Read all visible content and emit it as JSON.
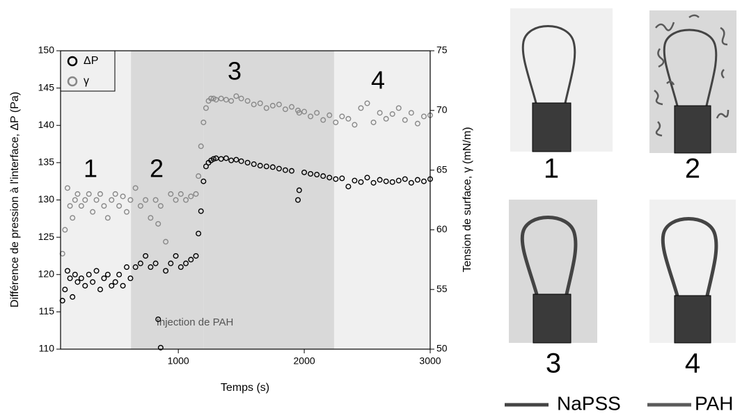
{
  "chart_data": {
    "type": "scatter",
    "xlabel": "Temps (s)",
    "ylabel": "Différence de pression à l'interface, ΔP (Pa)",
    "y2label": "Tension de surface, γ (mN/m)",
    "annotation": "Injection de PAH",
    "xlim": [
      65,
      3000
    ],
    "xticks": [
      1000,
      2000,
      3000
    ],
    "ylim": [
      110,
      150
    ],
    "yticks": [
      110,
      115,
      120,
      125,
      130,
      135,
      140,
      145,
      150
    ],
    "y2lim": [
      50,
      75
    ],
    "y2ticks": [
      50,
      55,
      60,
      65,
      70,
      75
    ],
    "legend": "upper left",
    "regions": [
      {
        "start": 65,
        "end": 624,
        "label": "1",
        "color": "#f0f0f0"
      },
      {
        "start": 624,
        "end": 1200,
        "label": "2",
        "color": "#d9d9d9"
      },
      {
        "start": 1200,
        "end": 2237,
        "label": "3",
        "color": "#d9d9d9"
      },
      {
        "start": 2237,
        "end": 3000,
        "label": "4",
        "color": "#f0f0f0"
      }
    ],
    "x": [
      80,
      100,
      120,
      140,
      160,
      180,
      200,
      230,
      260,
      290,
      320,
      350,
      380,
      410,
      440,
      470,
      500,
      530,
      560,
      590,
      620,
      660,
      700,
      740,
      780,
      820,
      840,
      860,
      900,
      940,
      980,
      1020,
      1060,
      1100,
      1140,
      1160,
      1180,
      1200,
      1220,
      1240,
      1260,
      1280,
      1300,
      1340,
      1380,
      1420,
      1460,
      1500,
      1550,
      1600,
      1650,
      1700,
      1750,
      1800,
      1850,
      1900,
      1950,
      1960,
      2000,
      2050,
      2100,
      2150,
      2200,
      2250,
      2300,
      2350,
      2400,
      2450,
      2500,
      2550,
      2600,
      2650,
      2700,
      2750,
      2800,
      2850,
      2900,
      2950,
      3000
    ],
    "series": [
      {
        "name": "ΔP",
        "color": "#000000",
        "axis": "y",
        "values": [
          116.5,
          118,
          120.5,
          119.5,
          117,
          120,
          119,
          119.5,
          118.5,
          120,
          119,
          120.5,
          118,
          119.5,
          120,
          118.5,
          119,
          120,
          118.5,
          121,
          119.5,
          121,
          121.5,
          122.5,
          121,
          121.5,
          114,
          110.2,
          120.5,
          121.5,
          122.5,
          121,
          121.5,
          122,
          122.5,
          125.5,
          128.5,
          132.5,
          134.5,
          135,
          135.3,
          135.5,
          135.6,
          135.5,
          135.6,
          135.3,
          135.4,
          135.2,
          135,
          134.8,
          134.6,
          134.5,
          134.4,
          134.2,
          134,
          133.9,
          130,
          131.3,
          133.7,
          133.5,
          133.4,
          133.2,
          133,
          132.8,
          132.9,
          131.8,
          132.6,
          132.4,
          133,
          132.3,
          132.7,
          132.5,
          132.4,
          132.6,
          132.8,
          132.3,
          132.7,
          132.5,
          132.8
        ]
      },
      {
        "name": "γ",
        "color": "#888888",
        "axis": "y2",
        "values": [
          58,
          60,
          63.5,
          62,
          61,
          62.5,
          63,
          62,
          62.5,
          63,
          61.5,
          62.5,
          63,
          62,
          61,
          62.5,
          63,
          62,
          62.8,
          61.5,
          62.5,
          63.5,
          62,
          62.5,
          61,
          62.5,
          60.5,
          62,
          59,
          63,
          62.5,
          63,
          62.5,
          62.8,
          63,
          64.5,
          67,
          69,
          70.2,
          70.8,
          71,
          71,
          70.9,
          71,
          70.9,
          70.8,
          71.2,
          71,
          70.8,
          70.5,
          70.6,
          70.2,
          70.4,
          70.5,
          70.1,
          70.3,
          70,
          69.8,
          69.9,
          69.5,
          69.8,
          69.2,
          69.6,
          69,
          69.5,
          69.3,
          68.8,
          70.2,
          70.6,
          69,
          69.8,
          69.3,
          69.7,
          70.2,
          69.2,
          69.8,
          68.9,
          69.5,
          69.6
        ]
      }
    ]
  },
  "schematic": {
    "panels": [
      "1",
      "2",
      "3",
      "4"
    ],
    "legend": [
      {
        "name": "NaPSS",
        "color": "#444444"
      },
      {
        "name": "PAH",
        "color": "#5a5a5a"
      }
    ]
  }
}
